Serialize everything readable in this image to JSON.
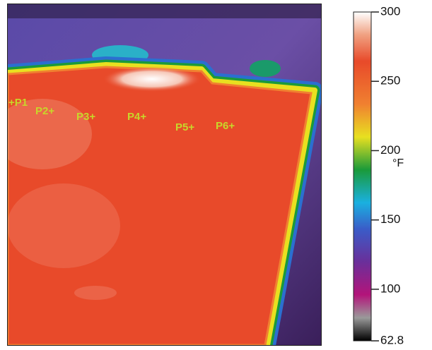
{
  "image": {
    "points": [
      "+P1",
      "P2+",
      "P3+",
      "P4+",
      "P5+",
      "P6+"
    ]
  },
  "colorbar": {
    "unit": "°F",
    "range": [
      62.8,
      300
    ],
    "ticks": [
      300,
      250,
      200,
      150,
      100,
      62.8
    ]
  }
}
